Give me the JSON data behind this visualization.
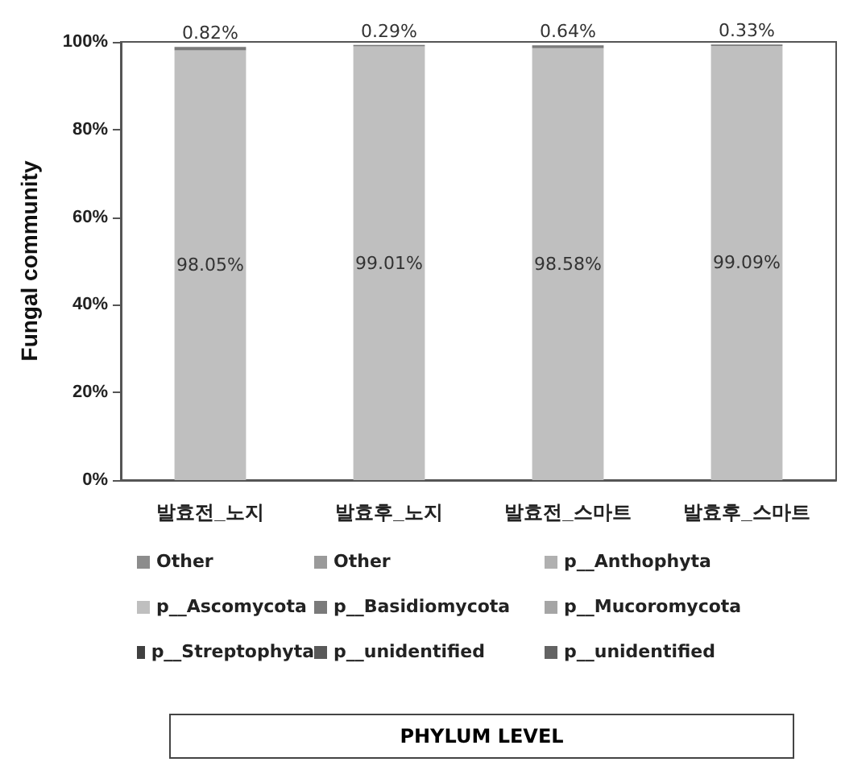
{
  "chart_data": {
    "type": "bar",
    "stacked": true,
    "title": "PHYLUM LEVEL",
    "ylabel": "Fungal community",
    "categories": [
      "발효전_노지",
      "발효후_노지",
      "발효전_스마트",
      "발효후_스마트"
    ],
    "ylim": [
      0,
      100
    ],
    "yticks": [
      {
        "value": 0,
        "label": "0%"
      },
      {
        "value": 20,
        "label": "20%"
      },
      {
        "value": 40,
        "label": "40%"
      },
      {
        "value": 60,
        "label": "60%"
      },
      {
        "value": 80,
        "label": "80%"
      },
      {
        "value": 100,
        "label": "100%"
      }
    ],
    "grid": false,
    "legend": "bottom",
    "series": [
      {
        "name": "Other",
        "color": "#8c8c8c",
        "values": [
          null,
          null,
          null,
          null
        ]
      },
      {
        "name": "Other",
        "color": "#9a9a9a",
        "values": [
          null,
          null,
          null,
          null
        ]
      },
      {
        "name": "p__Anthophyta",
        "color": "#b0b0b0",
        "values": [
          null,
          null,
          null,
          null
        ]
      },
      {
        "name": "p__Ascomycota",
        "color": "#bfbfbf",
        "values": [
          98.05,
          99.01,
          98.58,
          99.09
        ],
        "value_labels": [
          "98.05%",
          "99.01%",
          "98.58%",
          "99.09%"
        ]
      },
      {
        "name": "p__Basidiomycota",
        "color": "#7a7a7a",
        "values": [
          0.82,
          0.29,
          0.64,
          0.33
        ],
        "value_labels": [
          "0.82%",
          "0.29%",
          "0.64%",
          "0.33%"
        ]
      },
      {
        "name": "p__Mucoromycota",
        "color": "#a5a5a5",
        "values": [
          null,
          null,
          null,
          null
        ]
      },
      {
        "name": "p__Streptophyta",
        "color": "#404040",
        "values": [
          null,
          null,
          null,
          null
        ]
      },
      {
        "name": "p__unidentified",
        "color": "#595959",
        "values": [
          null,
          null,
          null,
          null
        ]
      },
      {
        "name": "p__unidentified",
        "color": "#636363",
        "values": [
          null,
          null,
          null,
          null
        ]
      }
    ]
  }
}
